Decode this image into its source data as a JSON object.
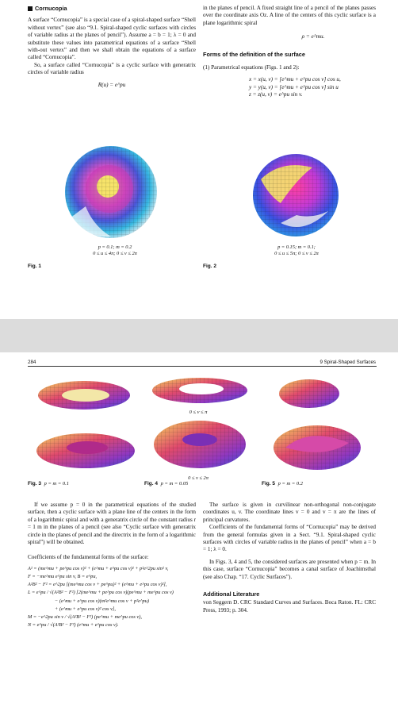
{
  "page1": {
    "section_heading": "Cornucopia",
    "left_paragraph_1": "A surface “Cornucopia” is a special case of a spiral-shaped surface “Shell without vertex” (see also “9.1. Spiral-shaped cyclic surfaces with circles of variable radius at the planes of pencil”). Assume a = b = 1; λ = 0 and substitute these values into parametrical equations of a surface “Shell with-out vertex” and then we shall obtain the equations of a surface called “Cornucopia”.",
    "left_paragraph_2": "So, a surface called “Cornucopia” is a cyclic surface with generatrix circles of variable radius",
    "left_equation": "R(u) = e^pu",
    "right_paragraph_1": "in the planes of pencil. A fixed straight line of a pencil of the planes passes over the coordinate axis Oz. A line of the centers of this cyclic surface is a plane logarithmic spiral",
    "right_equation": "ρ = e^mu.",
    "forms_heading": "Forms of the definition of the surface",
    "forms_item": "(1) Parametrical equations (Figs. 1 and 2):",
    "param_x": "x = x(u, v) = [e^mu + e^pu cos v] cos u,",
    "param_y": "y = y(u, v) = [e^mu + e^pu cos v] sin u",
    "param_z": "z = z(u, v) = e^pu sin v.",
    "fig1_sub": [
      "p = 0.1; m = 0.2",
      "0 ≤ u ≤ 4π; 0 ≤ v ≤ 2π"
    ],
    "fig2_sub": [
      "p = 0.15; m = 0.1;",
      "0 ≤ u ≤ 5π; 0 ≤ v ≤ 2π"
    ],
    "fig1_label": "Fig. 1",
    "fig2_label": "Fig. 2"
  },
  "page2": {
    "page_number": "284",
    "running_head": "9   Spiral-Shaped Surfaces",
    "mid_range_1": "0 ≤ v ≤ π",
    "mid_range_2": "0 ≤ v ≤ 2π",
    "fig3_label": "Fig. 3",
    "fig3_text": "p = m = 0.1",
    "fig4_label": "Fig. 4",
    "fig4_text": "p = m = 0.05",
    "fig5_label": "Fig. 5",
    "fig5_text": "p = m = 0.2",
    "left_paragraph": "If we assume p = 0 in the parametrical equations of the studied surface, then a cyclic surface with a plane line of the centers in the form of a logarithmic spiral and with a generatrix circle of the constant radius r = 1 m in the planes of a pencil (see also “Cyclic surface with generatrix circle in the planes of pencil and the directrix in the form of a logarithmic spiral”) will be obtained.",
    "coeff_heading": "Coefficients of the fundamental forms of the surface:",
    "math_lines": [
      "A² = (me^mu + pe^pu cos v)² + (e^mu + e^pu cos v)² + p²e^2pu sin² v,",
      "F = −me^mu e^pu sin v,  B = e^pu,",
      "A²B² − F² = e^2pu [(me^mu cos v + pe^pu)² + (e^mu + e^pu cos v)²],",
      "L = e^pu / √(A²B² − F²) [2(me^mu + pe^pu cos v)(pe^mu + me^pu cos v)",
      "− (e^mu + e^pu cos v)(m²e^mu cos v + p²e^pu)",
      "+ (e^mu + e^pu cos v)² cos v],",
      "M = −e^2pu sin v / √(A²B² − F²) (pe^mu + me^pu cos v),",
      "N = e^pu / √(A²B² − F²) (e^mu + e^pu cos v)."
    ],
    "right_paragraph_1": "The surface is given in curvilinear non-orthogonal non-conjugate coordinates u, v. The coordinate lines v = 0 and v = π are the lines of principal curvatures.",
    "right_paragraph_2": "Coefficients of the fundamental forms of “Cornucopia” may be derived from the general formulas given in a Sect. “9.1. Spiral-shaped cyclic surfaces with circles of variable radius in the planes of pencil” when a = b = 1; λ = 0.",
    "right_paragraph_3": "In Figs. 3, 4 and 5, the considered surfaces are presented when p = m. In this case, surface “Cornucopia” becomes a canal surface of Joachimsthal (see also Chap. “17. Cyclic Surfaces”).",
    "lit_heading": "Additional Literature",
    "lit_text": "von Seggern D. CRC Standard Curves and Surfaces. Boca Raton. FL: CRC Press, 1993; p. 304."
  }
}
